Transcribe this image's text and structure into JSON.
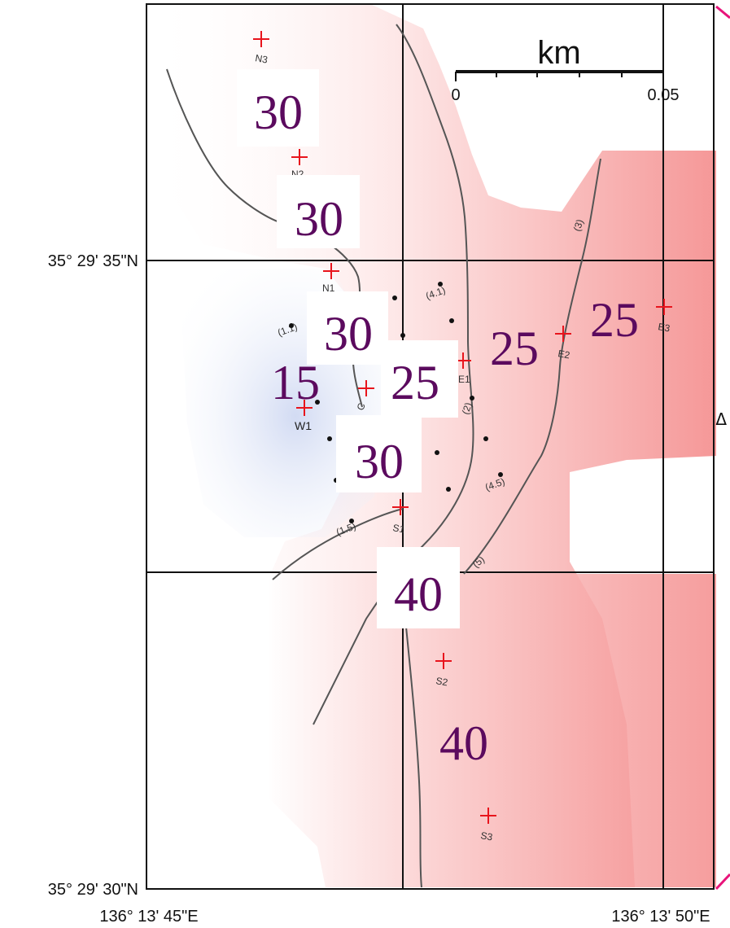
{
  "scale_bar": {
    "unit": "km",
    "start": "0",
    "end": "0.05"
  },
  "coordinates": {
    "lat_top": "35° 29' 35\"N",
    "lat_bottom": "35° 29' 30\"N",
    "lon_left": "136° 13' 45\"E",
    "lon_right": "136° 13' 50\"E"
  },
  "value_labels": [
    "30",
    "30",
    "30",
    "15",
    "25",
    "25",
    "25",
    "30",
    "40",
    "40"
  ],
  "stations": [
    "N3",
    "N2",
    "N1",
    "C",
    "W1",
    "E1",
    "E2",
    "E3",
    "S1",
    "S2",
    "S3"
  ],
  "contour_labels": [
    "(1.1)",
    "(4.1)",
    "(4.5)",
    "(1.5)",
    "(3)",
    "(2)",
    "(5)"
  ],
  "edge_mark": "Δ",
  "colors": {
    "warm": "#f38a8a",
    "cool": "#c9d3f2",
    "marker": "#e8141c",
    "label": "#5b0a5e"
  }
}
